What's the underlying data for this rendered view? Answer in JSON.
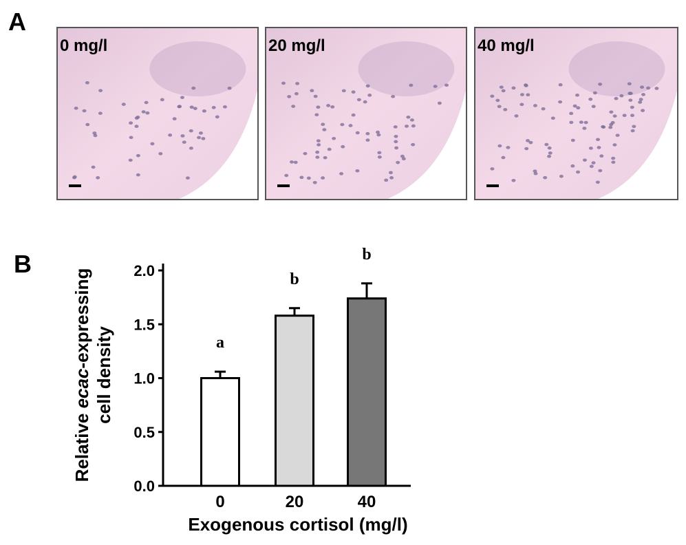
{
  "panels": {
    "a_label": "A",
    "b_label": "B"
  },
  "images": [
    {
      "label": "0 mg/l"
    },
    {
      "label": "20 mg/l"
    },
    {
      "label": "40 mg/l"
    }
  ],
  "chart_data": {
    "type": "bar",
    "ylabel": [
      "Relative ",
      "ecac",
      "-expressing"
    ],
    "ylabel_line2": "cell density",
    "xlabel": "Exogenous cortisol (mg/l)",
    "categories": [
      "0",
      "20",
      "40"
    ],
    "values": [
      1.0,
      1.58,
      1.74
    ],
    "errors": [
      0.06,
      0.07,
      0.14
    ],
    "colors": [
      "#ffffff",
      "#d9d9d9",
      "#777777"
    ],
    "annotations": [
      "a",
      "b",
      "b"
    ],
    "ylim": [
      0,
      2.0
    ],
    "yticks": [
      {
        "value": 0,
        "label": "0.0"
      },
      {
        "value": 0.5,
        "label": "0.5"
      },
      {
        "value": 1.0,
        "label": "1.0"
      },
      {
        "value": 1.5,
        "label": "1.5"
      },
      {
        "value": 2.0,
        "label": "2.0"
      }
    ]
  }
}
